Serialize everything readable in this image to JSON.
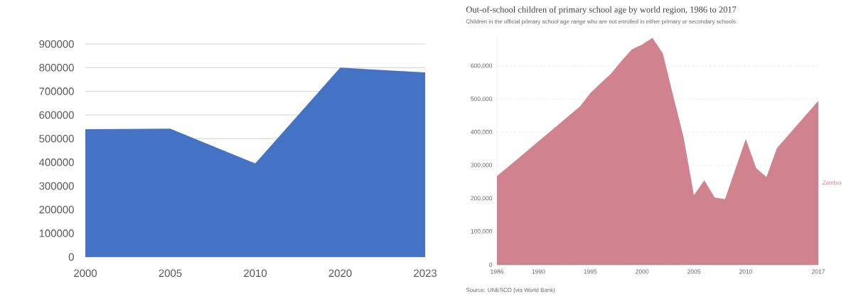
{
  "chart_data": [
    {
      "type": "area",
      "categories": [
        "2000",
        "2005",
        "2010",
        "2020",
        "2023"
      ],
      "series": [
        {
          "color": "#4472c4",
          "values": [
            540000,
            542000,
            395000,
            800000,
            780000
          ]
        }
      ],
      "ylim": [
        0,
        900000
      ],
      "yticks": [
        0,
        100000,
        200000,
        300000,
        400000,
        500000,
        600000,
        700000,
        800000,
        900000
      ],
      "grid": "y"
    },
    {
      "type": "area",
      "title": "Out-of-school children of primary school age by world region, 1986 to 2017",
      "subtitle": "Children in the official primary school age range who are not enrolled in either primary or secondary schools.",
      "x": [
        1986,
        1988,
        1994,
        1995,
        1996,
        1997,
        1998,
        1999,
        2000,
        2001,
        2002,
        2003,
        2004,
        2005,
        2006,
        2007,
        2008,
        2010,
        2011,
        2012,
        2013,
        2017
      ],
      "series": [
        {
          "name": "Zambia",
          "color": "#d0828f",
          "values": [
            268000,
            320000,
            478000,
            518000,
            548000,
            577000,
            615000,
            650000,
            665000,
            685000,
            638000,
            510000,
            385000,
            210000,
            255000,
            203000,
            198000,
            380000,
            292000,
            265000,
            352000,
            495000
          ]
        }
      ],
      "xlim": [
        1986,
        2017
      ],
      "xticks": [
        1986,
        1990,
        1995,
        2000,
        2005,
        2010,
        2017
      ],
      "yticks": [
        {
          "value": 0,
          "label": "0"
        },
        {
          "value": 100000,
          "label": "100,000"
        },
        {
          "value": 200000,
          "label": "200,000"
        },
        {
          "value": 300000,
          "label": "300,000"
        },
        {
          "value": 400000,
          "label": "400,000"
        },
        {
          "value": 500000,
          "label": "500,000"
        },
        {
          "value": 600000,
          "label": "600,000"
        }
      ],
      "ylim": [
        0,
        690000
      ],
      "grid": "y",
      "annotations": [
        "Source: UNESCO (via World Bank)"
      ]
    }
  ]
}
